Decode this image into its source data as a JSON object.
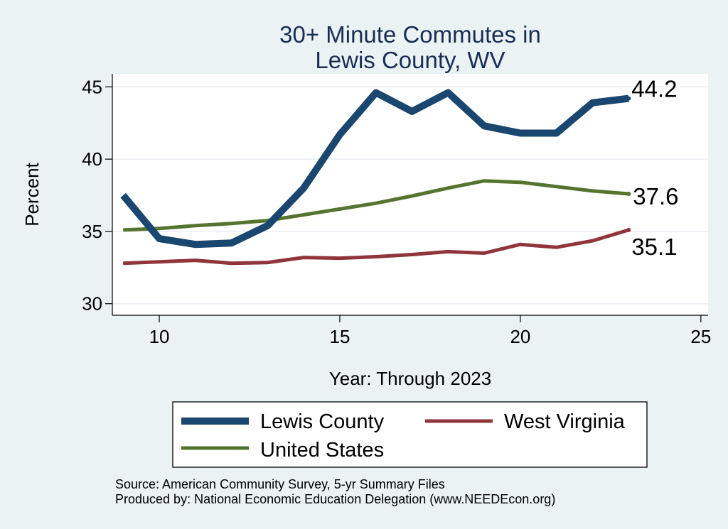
{
  "chart_data": {
    "type": "line",
    "title_lines": [
      "30+ Minute Commutes in",
      "Lewis County, WV"
    ],
    "xlabel": "Year: Through 2023",
    "ylabel": "Percent",
    "xlim": [
      8.7,
      25.2
    ],
    "ylim": [
      29.2,
      45.9
    ],
    "xticks": [
      10,
      15,
      20,
      25
    ],
    "yticks": [
      30,
      35,
      40,
      45
    ],
    "grid": true,
    "x": [
      9,
      10,
      11,
      12,
      13,
      14,
      15,
      16,
      17,
      18,
      19,
      20,
      21,
      22,
      23
    ],
    "series": [
      {
        "name": "Lewis County",
        "color": "#1a476f",
        "values": [
          37.5,
          34.5,
          34.1,
          34.2,
          35.4,
          38.0,
          41.7,
          44.6,
          43.3,
          44.6,
          42.3,
          41.8,
          41.8,
          43.9,
          44.2
        ],
        "end_label": "44.2"
      },
      {
        "name": "West Virginia",
        "color": "#90353b",
        "values": [
          32.8,
          32.9,
          33.0,
          32.8,
          32.85,
          33.2,
          33.15,
          33.25,
          33.4,
          33.6,
          33.5,
          34.1,
          33.9,
          34.35,
          35.1
        ],
        "end_label": "35.1"
      },
      {
        "name": "United States",
        "color": "#55752f",
        "values": [
          35.1,
          35.2,
          35.4,
          35.55,
          35.75,
          36.15,
          36.55,
          36.95,
          37.45,
          38.0,
          38.5,
          38.4,
          38.1,
          37.8,
          37.6
        ],
        "end_label": "37.6"
      }
    ],
    "legend_position": "bottom",
    "notes": [
      "Source: American Community Survey, 5-yr Summary Files",
      "Produced by: National Economic Education Delegation (www.NEEDEcon.org)"
    ]
  }
}
